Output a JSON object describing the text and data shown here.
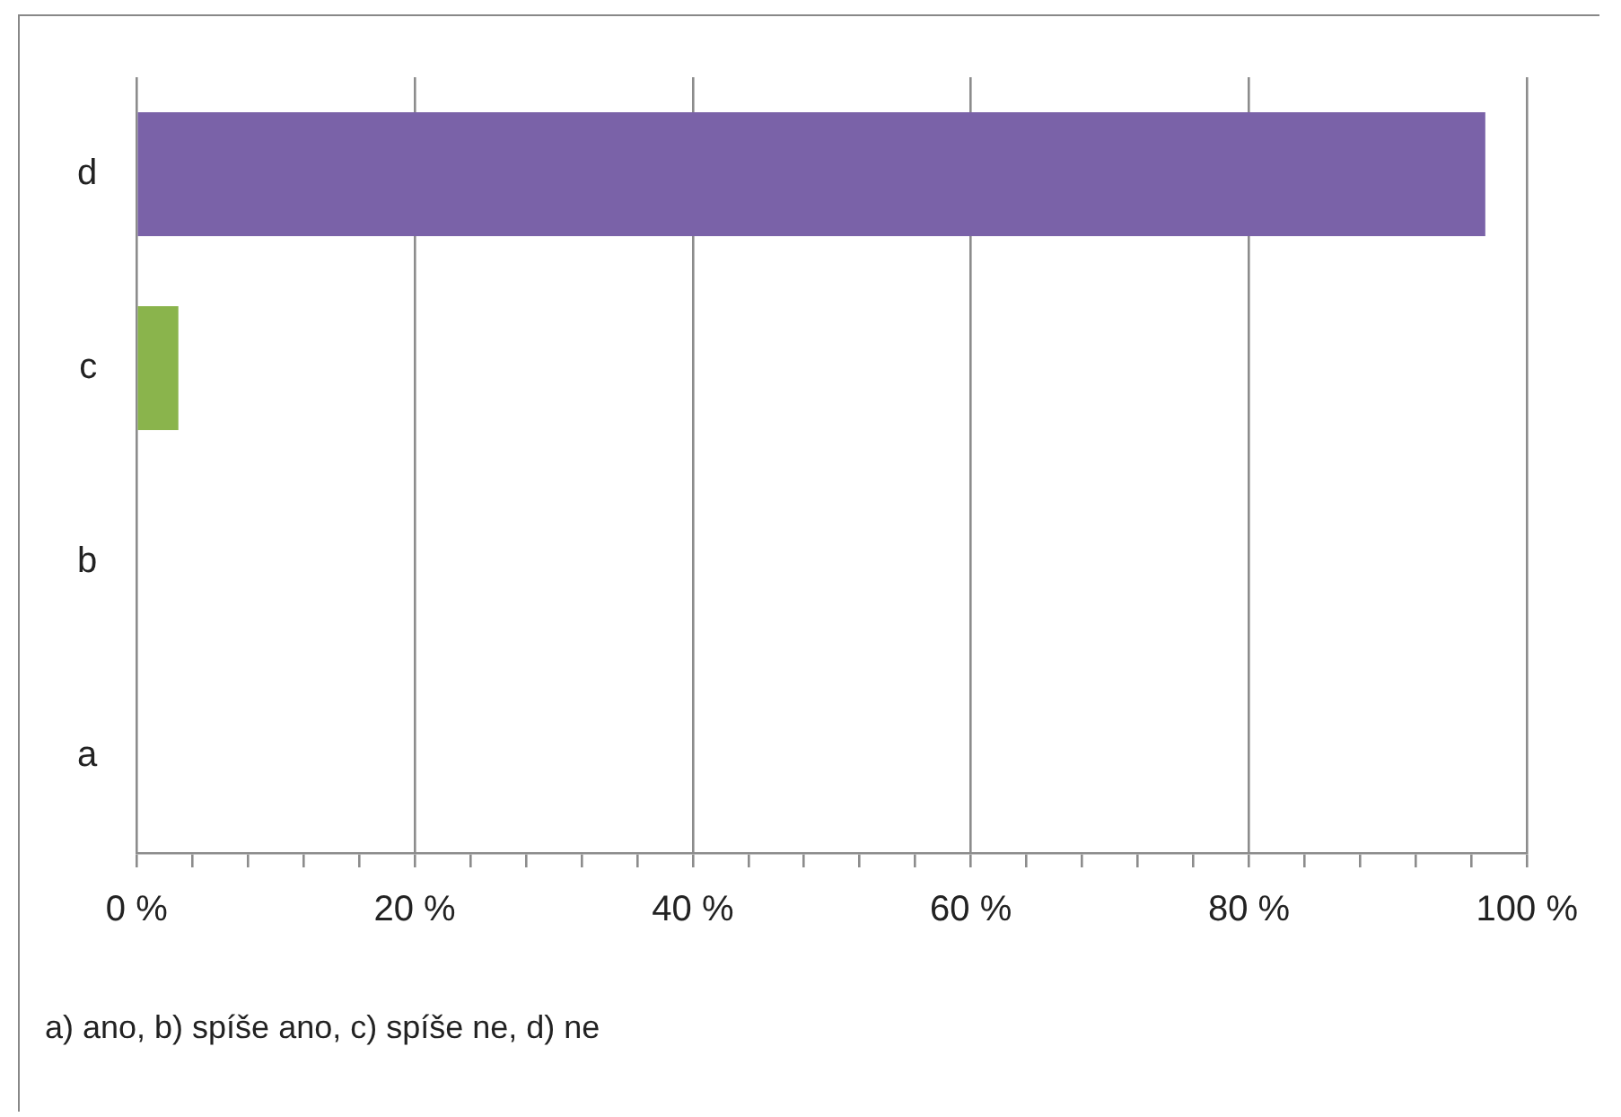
{
  "chart_data": {
    "type": "bar",
    "orientation": "horizontal",
    "categories": [
      "d",
      "c",
      "b",
      "a"
    ],
    "values": [
      97,
      3,
      0,
      0
    ],
    "colors": [
      "#7a62a8",
      "#8ab44c",
      "#c0504d",
      "#4f81bd"
    ],
    "xlim": [
      0,
      100
    ],
    "xticks": [
      {
        "value": 0,
        "label": "0 %"
      },
      {
        "value": 4,
        "label": null
      },
      {
        "value": 8,
        "label": null
      },
      {
        "value": 12,
        "label": null
      },
      {
        "value": 16,
        "label": null
      },
      {
        "value": 20,
        "label": "20 %"
      },
      {
        "value": 24,
        "label": null
      },
      {
        "value": 28,
        "label": null
      },
      {
        "value": 32,
        "label": null
      },
      {
        "value": 36,
        "label": null
      },
      {
        "value": 40,
        "label": "40 %"
      },
      {
        "value": 44,
        "label": null
      },
      {
        "value": 48,
        "label": null
      },
      {
        "value": 52,
        "label": null
      },
      {
        "value": 56,
        "label": null
      },
      {
        "value": 60,
        "label": "60 %"
      },
      {
        "value": 64,
        "label": null
      },
      {
        "value": 68,
        "label": null
      },
      {
        "value": 72,
        "label": null
      },
      {
        "value": 76,
        "label": null
      },
      {
        "value": 80,
        "label": "80 %"
      },
      {
        "value": 84,
        "label": null
      },
      {
        "value": 88,
        "label": null
      },
      {
        "value": 92,
        "label": null
      },
      {
        "value": 96,
        "label": null
      },
      {
        "value": 100,
        "label": "100 %"
      }
    ],
    "grid": "x",
    "legend": false,
    "annotations": [
      "a) ano, b) spíše ano, c) spíše ne, d) ne"
    ]
  }
}
